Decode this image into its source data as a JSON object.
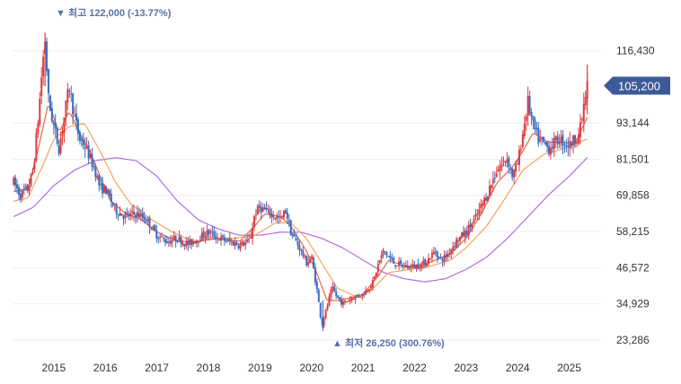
{
  "chart_data": {
    "type": "candlestick",
    "title": "",
    "xlabel": "",
    "ylabel": "",
    "x_ticks": [
      "2015",
      "2016",
      "2017",
      "2018",
      "2019",
      "2020",
      "2021",
      "2022",
      "2023",
      "2024",
      "2025"
    ],
    "y_ticks": [
      "116,430",
      "93,144",
      "81,501",
      "69,858",
      "58,215",
      "46,572",
      "34,929",
      "23,286"
    ],
    "y_tick_values": [
      116430,
      93144,
      81501,
      69858,
      58215,
      46572,
      34929,
      23286
    ],
    "ylim": [
      19500,
      127000
    ],
    "xlim": [
      2014.2,
      2025.6
    ],
    "grid": true,
    "colors": {
      "up": "#e03a3e",
      "down": "#3d6cc0",
      "ma_short": "#e8684a",
      "ma_mid": "#f2a65a",
      "ma_long": "#b16ee0",
      "tag": "#3d5a98",
      "annot": "#5a6fa6"
    },
    "annotations": {
      "high": {
        "label": "▼ 최고 122,000 (-13.77%)",
        "x": 2014.83,
        "value": 122000
      },
      "low": {
        "label": "▲ 최저 26,250 (300.76%)",
        "x": 2020.22,
        "value": 26250
      }
    },
    "current_price": {
      "label": "105,200",
      "value": 105200
    },
    "price_path": [
      [
        2014.22,
        74000
      ],
      [
        2014.35,
        70000
      ],
      [
        2014.5,
        72000
      ],
      [
        2014.6,
        78000
      ],
      [
        2014.7,
        95000
      ],
      [
        2014.78,
        112000
      ],
      [
        2014.83,
        120000
      ],
      [
        2014.9,
        100000
      ],
      [
        2015.0,
        92000
      ],
      [
        2015.1,
        85000
      ],
      [
        2015.2,
        95000
      ],
      [
        2015.3,
        105000
      ],
      [
        2015.4,
        95000
      ],
      [
        2015.5,
        88000
      ],
      [
        2015.6,
        86000
      ],
      [
        2015.7,
        82000
      ],
      [
        2015.8,
        78000
      ],
      [
        2015.9,
        72000
      ],
      [
        2016.0,
        72000
      ],
      [
        2016.2,
        65000
      ],
      [
        2016.4,
        63000
      ],
      [
        2016.6,
        64000
      ],
      [
        2016.8,
        62000
      ],
      [
        2017.0,
        57000
      ],
      [
        2017.2,
        55000
      ],
      [
        2017.4,
        56000
      ],
      [
        2017.6,
        54000
      ],
      [
        2017.8,
        56000
      ],
      [
        2018.0,
        58000
      ],
      [
        2018.2,
        56000
      ],
      [
        2018.4,
        55000
      ],
      [
        2018.6,
        54000
      ],
      [
        2018.8,
        55000
      ],
      [
        2018.9,
        64000
      ],
      [
        2019.0,
        66000
      ],
      [
        2019.2,
        64000
      ],
      [
        2019.4,
        62000
      ],
      [
        2019.5,
        65000
      ],
      [
        2019.6,
        58000
      ],
      [
        2019.8,
        52000
      ],
      [
        2019.9,
        48000
      ],
      [
        2020.0,
        50000
      ],
      [
        2020.1,
        40000
      ],
      [
        2020.2,
        28000
      ],
      [
        2020.3,
        34000
      ],
      [
        2020.4,
        40000
      ],
      [
        2020.5,
        37000
      ],
      [
        2020.6,
        35000
      ],
      [
        2020.8,
        37000
      ],
      [
        2021.0,
        38000
      ],
      [
        2021.2,
        42000
      ],
      [
        2021.3,
        48000
      ],
      [
        2021.4,
        52000
      ],
      [
        2021.6,
        48000
      ],
      [
        2021.8,
        47000
      ],
      [
        2022.0,
        47000
      ],
      [
        2022.2,
        48000
      ],
      [
        2022.4,
        52000
      ],
      [
        2022.5,
        49000
      ],
      [
        2022.6,
        50000
      ],
      [
        2022.8,
        55000
      ],
      [
        2023.0,
        58000
      ],
      [
        2023.2,
        63000
      ],
      [
        2023.4,
        70000
      ],
      [
        2023.6,
        78000
      ],
      [
        2023.8,
        82000
      ],
      [
        2023.9,
        76000
      ],
      [
        2024.0,
        80000
      ],
      [
        2024.2,
        100000
      ],
      [
        2024.3,
        92000
      ],
      [
        2024.4,
        88000
      ],
      [
        2024.6,
        85000
      ],
      [
        2024.8,
        88000
      ],
      [
        2025.0,
        86000
      ],
      [
        2025.2,
        90000
      ],
      [
        2025.35,
        105200
      ]
    ],
    "ma_short_path": [
      [
        2014.22,
        71000
      ],
      [
        2014.5,
        72000
      ],
      [
        2014.7,
        85000
      ],
      [
        2014.9,
        100000
      ],
      [
        2015.1,
        90000
      ],
      [
        2015.3,
        97000
      ],
      [
        2015.5,
        90000
      ],
      [
        2015.7,
        84000
      ],
      [
        2015.9,
        76000
      ],
      [
        2016.1,
        68000
      ],
      [
        2016.4,
        64000
      ],
      [
        2016.7,
        62000
      ],
      [
        2017.0,
        58000
      ],
      [
        2017.4,
        55000
      ],
      [
        2017.8,
        55000
      ],
      [
        2018.2,
        56000
      ],
      [
        2018.6,
        55000
      ],
      [
        2018.9,
        60000
      ],
      [
        2019.1,
        64000
      ],
      [
        2019.4,
        63000
      ],
      [
        2019.6,
        60000
      ],
      [
        2019.9,
        52000
      ],
      [
        2020.1,
        45000
      ],
      [
        2020.3,
        36000
      ],
      [
        2020.5,
        36000
      ],
      [
        2020.8,
        37000
      ],
      [
        2021.0,
        38000
      ],
      [
        2021.3,
        44000
      ],
      [
        2021.5,
        49000
      ],
      [
        2021.8,
        47000
      ],
      [
        2022.1,
        47000
      ],
      [
        2022.4,
        49000
      ],
      [
        2022.7,
        51000
      ],
      [
        2023.0,
        56000
      ],
      [
        2023.3,
        64000
      ],
      [
        2023.6,
        74000
      ],
      [
        2023.9,
        79000
      ],
      [
        2024.1,
        84000
      ],
      [
        2024.3,
        90000
      ],
      [
        2024.6,
        87000
      ],
      [
        2024.9,
        87000
      ],
      [
        2025.1,
        86000
      ],
      [
        2025.35,
        95000
      ]
    ],
    "ma_mid_path": [
      [
        2014.22,
        68000
      ],
      [
        2014.5,
        69000
      ],
      [
        2014.8,
        80000
      ],
      [
        2015.0,
        88000
      ],
      [
        2015.3,
        92000
      ],
      [
        2015.6,
        93000
      ],
      [
        2015.9,
        84000
      ],
      [
        2016.2,
        74000
      ],
      [
        2016.5,
        67000
      ],
      [
        2016.9,
        62000
      ],
      [
        2017.3,
        58000
      ],
      [
        2017.7,
        55000
      ],
      [
        2018.1,
        56000
      ],
      [
        2018.5,
        56000
      ],
      [
        2018.9,
        57000
      ],
      [
        2019.3,
        61000
      ],
      [
        2019.6,
        61000
      ],
      [
        2019.9,
        56000
      ],
      [
        2020.2,
        48000
      ],
      [
        2020.5,
        40000
      ],
      [
        2020.9,
        37000
      ],
      [
        2021.2,
        40000
      ],
      [
        2021.5,
        45000
      ],
      [
        2021.9,
        46000
      ],
      [
        2022.3,
        47000
      ],
      [
        2022.7,
        49000
      ],
      [
        2023.0,
        53000
      ],
      [
        2023.4,
        60000
      ],
      [
        2023.8,
        70000
      ],
      [
        2024.1,
        78000
      ],
      [
        2024.5,
        83000
      ],
      [
        2024.9,
        85000
      ],
      [
        2025.35,
        88000
      ]
    ],
    "ma_long_path": [
      [
        2014.22,
        63000
      ],
      [
        2014.6,
        66000
      ],
      [
        2015.0,
        73000
      ],
      [
        2015.4,
        78000
      ],
      [
        2015.8,
        81000
      ],
      [
        2016.2,
        82000
      ],
      [
        2016.6,
        81000
      ],
      [
        2017.0,
        76000
      ],
      [
        2017.4,
        68000
      ],
      [
        2017.8,
        62000
      ],
      [
        2018.2,
        59000
      ],
      [
        2018.6,
        57000
      ],
      [
        2019.0,
        57000
      ],
      [
        2019.4,
        58000
      ],
      [
        2019.8,
        58000
      ],
      [
        2020.2,
        56000
      ],
      [
        2020.6,
        53000
      ],
      [
        2021.0,
        49000
      ],
      [
        2021.4,
        45000
      ],
      [
        2021.8,
        43000
      ],
      [
        2022.2,
        42000
      ],
      [
        2022.6,
        43000
      ],
      [
        2023.0,
        46000
      ],
      [
        2023.4,
        50000
      ],
      [
        2023.8,
        56000
      ],
      [
        2024.2,
        63000
      ],
      [
        2024.6,
        70000
      ],
      [
        2025.0,
        76000
      ],
      [
        2025.35,
        82000
      ]
    ]
  }
}
